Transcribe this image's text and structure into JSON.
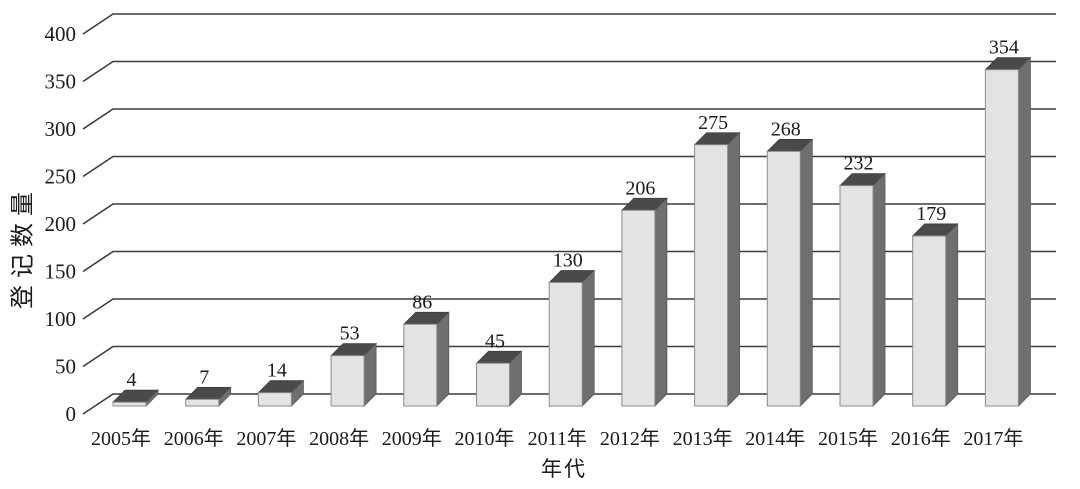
{
  "chart_data": {
    "type": "bar",
    "style": "3d-column",
    "title": "",
    "categories": [
      "2005年",
      "2006年",
      "2007年",
      "2008年",
      "2009年",
      "2010年",
      "2011年",
      "2012年",
      "2013年",
      "2014年",
      "2015年",
      "2016年",
      "2017年"
    ],
    "values": [
      4,
      7,
      14,
      53,
      86,
      45,
      130,
      206,
      275,
      268,
      232,
      179,
      354
    ],
    "xlabel": "年代",
    "ylabel": "登记数量",
    "ylim": [
      0,
      400
    ],
    "ytick_step": 50,
    "yticks": [
      0,
      50,
      100,
      150,
      200,
      250,
      300,
      350,
      400
    ],
    "grid": true,
    "legend": false,
    "data_labels": true,
    "colors": {
      "bar_front": "#e3e3e3",
      "bar_front_border": "#8c8c8c",
      "bar_top": "#4a4a4a",
      "bar_side": "#6f6f6f",
      "gridline": "#3e3a39",
      "text": "#1b1b1b",
      "background": "#ffffff"
    }
  }
}
